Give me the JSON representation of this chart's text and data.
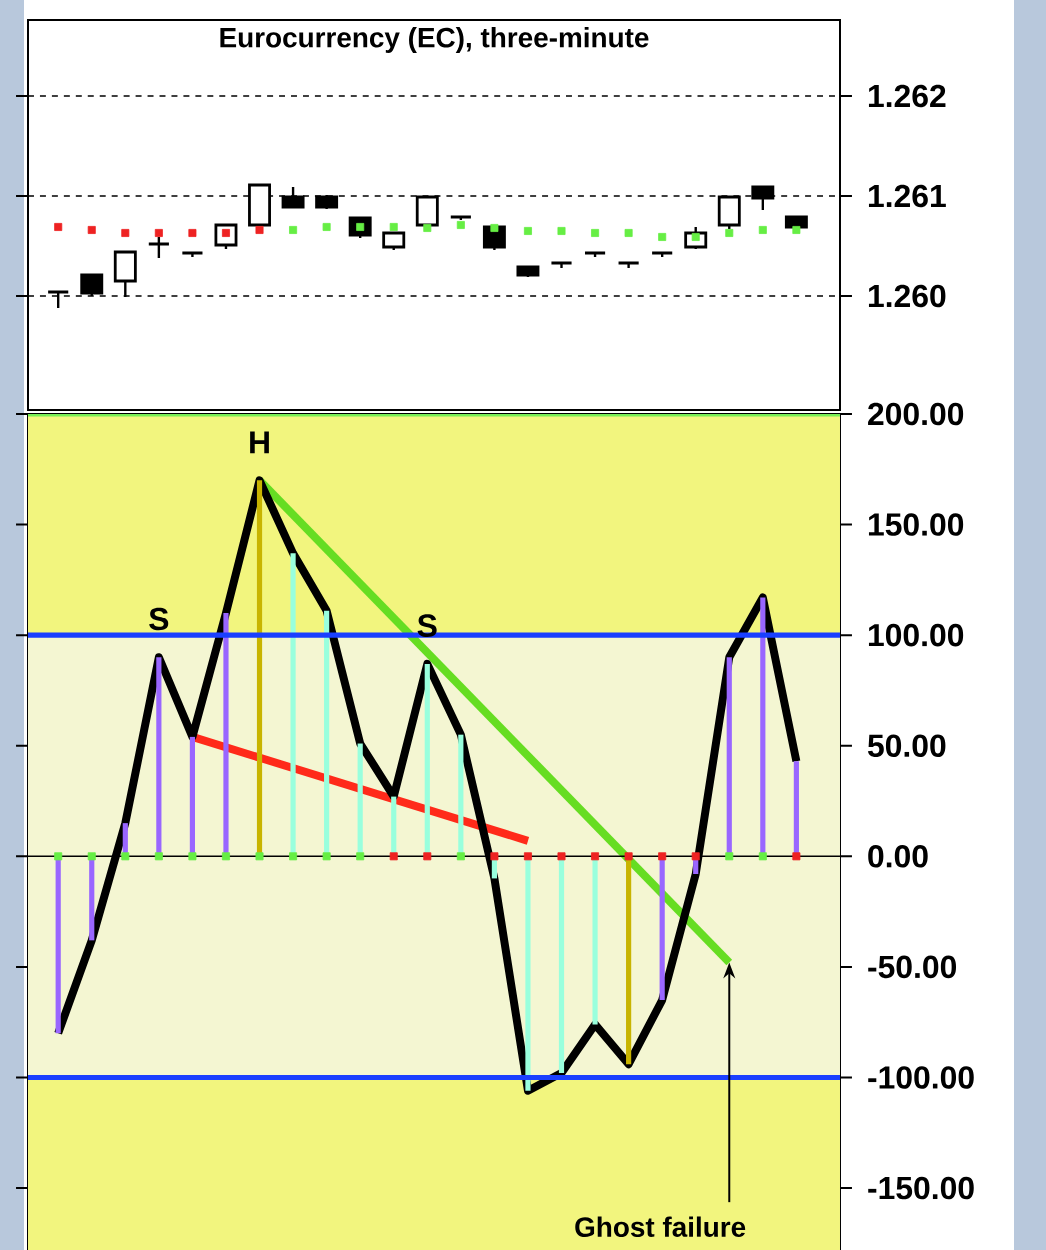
{
  "chart_data": [
    {
      "type": "candlestick",
      "title": "Eurocurrency (EC), three-minute",
      "categories": [
        null,
        null,
        null,
        null,
        null,
        null,
        null,
        null,
        null,
        null,
        null,
        null,
        null,
        null,
        null,
        null,
        null,
        null,
        null,
        null,
        null,
        null,
        null
      ],
      "ohlc": [
        [
          1.26004,
          1.26004,
          1.25988,
          1.26004
        ],
        [
          1.26021,
          1.26021,
          1.26,
          1.26003
        ],
        [
          1.26015,
          1.26044,
          1.25999,
          1.26044
        ],
        [
          1.26052,
          1.26059,
          1.26038,
          1.26052
        ],
        [
          1.26043,
          1.26043,
          1.26039,
          1.26043
        ],
        [
          1.26051,
          1.26071,
          1.26047,
          1.26071
        ],
        [
          1.26071,
          1.26111,
          1.26071,
          1.26111
        ],
        [
          1.26099,
          1.26109,
          1.26089,
          1.26089
        ],
        [
          1.26099,
          1.26101,
          1.26087,
          1.26089
        ],
        [
          1.26078,
          1.26078,
          1.26058,
          1.26061
        ],
        [
          1.26049,
          1.26063,
          1.26046,
          1.26063
        ],
        [
          1.26071,
          1.26099,
          1.26071,
          1.26099
        ],
        [
          1.26079,
          1.26079,
          1.26076,
          1.26079
        ],
        [
          1.26069,
          1.26071,
          1.26046,
          1.26049
        ],
        [
          1.26029,
          1.26029,
          1.26019,
          1.26021
        ],
        [
          1.26033,
          1.26033,
          1.26028,
          1.26033
        ],
        [
          1.26043,
          1.26043,
          1.26039,
          1.26043
        ],
        [
          1.26033,
          1.26033,
          1.26028,
          1.26033
        ],
        [
          1.26043,
          1.26043,
          1.26039,
          1.26043
        ],
        [
          1.26049,
          1.26069,
          1.26047,
          1.26063
        ],
        [
          1.26071,
          1.26099,
          1.26067,
          1.26099
        ],
        [
          1.26109,
          1.26109,
          1.26086,
          1.26098
        ],
        [
          1.26079,
          1.26079,
          1.26069,
          1.26069
        ]
      ],
      "series": [
        {
          "type": "scatter",
          "marker": "square",
          "values": [
            1.26069,
            1.26066,
            1.26063,
            1.26063,
            1.26063,
            1.26063,
            1.26066,
            1.26066,
            1.26069,
            1.26069,
            1.26069,
            1.26068,
            1.26071,
            1.26068,
            1.26065,
            1.26065,
            1.26063,
            1.26063,
            1.26059,
            1.26059,
            1.26063,
            1.26066,
            1.26066
          ],
          "colors": [
            "#ee2222",
            "#ee2222",
            "#ee2222",
            "#ee2222",
            "#ee2222",
            "#ee2222",
            "#ee2222",
            "#66ee44",
            "#66ee44",
            "#66ee44",
            "#66ee44",
            "#66ee44",
            "#66ee44",
            "#66ee44",
            "#66ee44",
            "#66ee44",
            "#66ee44",
            "#66ee44",
            "#66ee44",
            "#66ee44",
            "#66ee44",
            "#66ee44",
            "#66ee44"
          ]
        }
      ],
      "ylim": [
        1.25886,
        1.26276
      ],
      "yticks": [
        {
          "value": 1.26,
          "label": "1.260"
        },
        {
          "value": 1.261,
          "label": "1.261"
        },
        {
          "value": 1.262,
          "label": "1.262"
        }
      ],
      "grid": "y",
      "tick_labels": "y"
    },
    {
      "type": "line",
      "categories": [
        null,
        null,
        null,
        null,
        null,
        null,
        null,
        null,
        null,
        null,
        null,
        null,
        null,
        null,
        null,
        null,
        null,
        null,
        null,
        null,
        null,
        null,
        null
      ],
      "series": [
        {
          "type": "bar",
          "values": [
            -80,
            -38,
            15,
            90,
            54,
            110,
            170,
            137,
            111,
            51,
            27,
            87,
            55,
            -10,
            -106,
            -98,
            -76,
            -94,
            -65,
            -8,
            90,
            117,
            43
          ],
          "colors": [
            "#9966ff",
            "#9966ff",
            "#9966ff",
            "#9966ff",
            "#9966ff",
            "#9966ff",
            "#c8b400",
            "#99ffdd",
            "#99ffdd",
            "#99ffdd",
            "#99ffdd",
            "#99ffdd",
            "#99ffdd",
            "#99ffdd",
            "#99ffdd",
            "#99ffdd",
            "#99ffdd",
            "#c8b400",
            "#9966ff",
            "#9966ff",
            "#9966ff",
            "#9966ff",
            "#9966ff"
          ]
        },
        {
          "type": "line",
          "color": "#ff2a1a",
          "values": [
            null,
            null,
            null,
            null,
            54,
            null,
            null,
            null,
            null,
            null,
            null,
            null,
            null,
            null,
            7,
            null,
            null,
            null,
            null,
            null,
            null,
            null,
            null
          ]
        },
        {
          "type": "line",
          "color": "#66dd22",
          "values": [
            null,
            null,
            null,
            null,
            null,
            null,
            170,
            null,
            null,
            null,
            null,
            null,
            null,
            null,
            null,
            null,
            null,
            null,
            null,
            null,
            -48,
            null,
            null
          ]
        },
        {
          "type": "line",
          "color": "#000000",
          "values": [
            -80,
            -38,
            15,
            90,
            54,
            110,
            170,
            137,
            111,
            51,
            27,
            87,
            55,
            -10,
            -106,
            -98,
            -76,
            -94,
            -65,
            -8,
            90,
            117,
            43
          ]
        },
        {
          "type": "scatter",
          "marker": "square",
          "values": [
            0,
            0,
            0,
            0,
            0,
            0,
            0,
            0,
            0,
            0,
            0,
            0,
            0,
            0,
            0,
            0,
            0,
            0,
            0,
            0,
            0,
            0,
            0
          ],
          "colors": [
            "#66ee44",
            "#66ee44",
            "#66ee44",
            "#66ee44",
            "#66ee44",
            "#66ee44",
            "#66ee44",
            "#66ee44",
            "#66ee44",
            "#66ee44",
            "#ee2222",
            "#ee2222",
            "#66ee44",
            "#ee2222",
            "#ee2222",
            "#ee2222",
            "#ee2222",
            "#ee2222",
            "#ee2222",
            "#ee2222",
            "#66ee44",
            "#66ee44",
            "#ee2222"
          ]
        }
      ],
      "bands": [
        {
          "axis": "y",
          "from": 100,
          "to": 200,
          "color": "#f2f57e"
        },
        {
          "axis": "y",
          "from": -100,
          "to": 100,
          "color": "#f4f6d2"
        },
        {
          "axis": "y",
          "from": -178,
          "to": -100,
          "color": "#f2f57e"
        }
      ],
      "ref_lines": [
        {
          "axis": "y",
          "value": 200,
          "color": "#77ee55"
        },
        {
          "axis": "y",
          "value": 100,
          "color": "#1a3fff"
        },
        {
          "axis": "y",
          "value": -100,
          "color": "#1a3fff"
        },
        {
          "axis": "y",
          "value": 0
        }
      ],
      "annotations": [
        {
          "text": "S",
          "y": 90
        },
        {
          "text": "H",
          "y": 170
        },
        {
          "text": "S",
          "y": 87
        },
        "Ghost failure"
      ],
      "ylim": [
        -178,
        200
      ],
      "yticks": [
        {
          "value": -150,
          "label": "-150.00"
        },
        {
          "value": -100,
          "label": "-100.00"
        },
        {
          "value": -50,
          "label": "-50.00"
        },
        {
          "value": 0,
          "label": "0.00"
        },
        {
          "value": 50,
          "label": "50.00"
        },
        {
          "value": 100,
          "label": "100.00"
        },
        {
          "value": 150,
          "label": "150.00"
        },
        {
          "value": 200,
          "label": "200.00"
        }
      ],
      "tick_labels": "y"
    }
  ]
}
